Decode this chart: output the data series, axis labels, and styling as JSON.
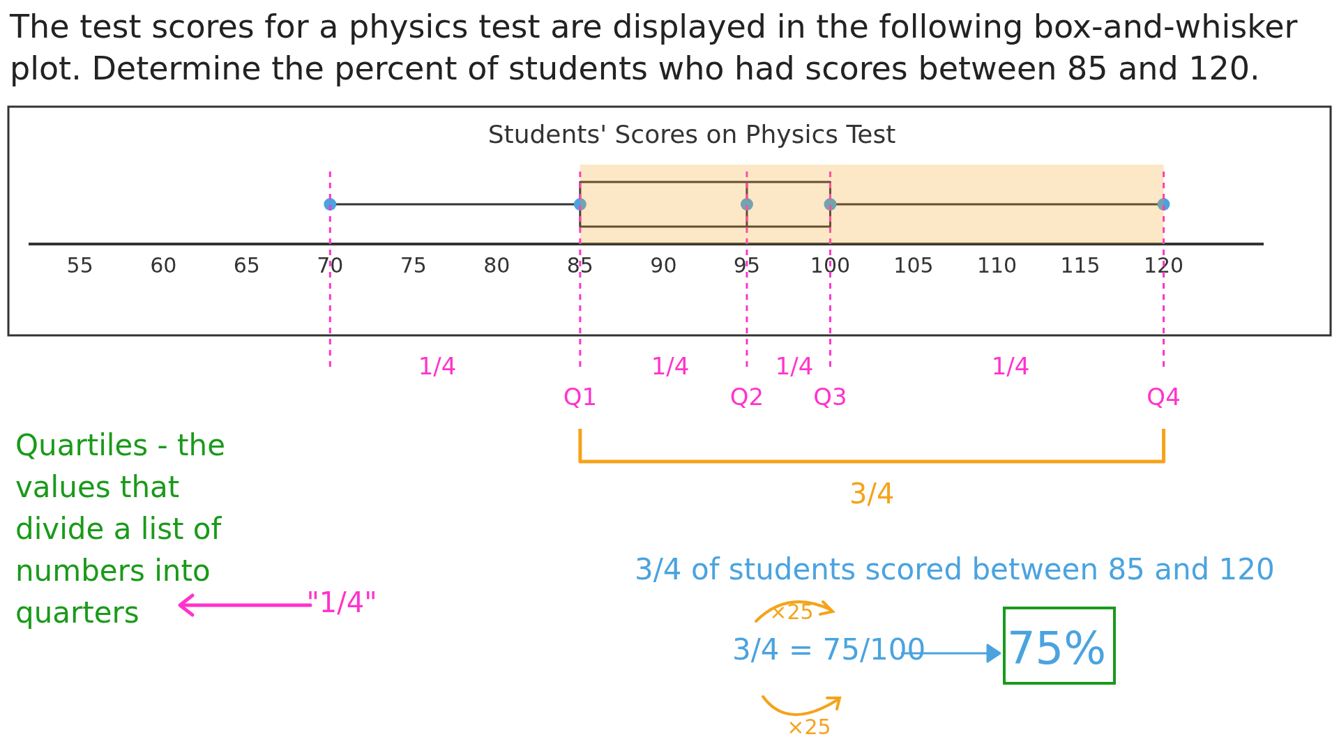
{
  "chart_data": {
    "type": "box",
    "orientation": "horizontal",
    "title": "Students' Scores on Physics Test",
    "categories": [
      null
    ],
    "marker": "circle",
    "color": "#333333",
    "series": [
      {
        "type": "scatter",
        "color": "#4aa3df",
        "x": [
          null,
          null,
          null,
          null,
          null
        ],
        "values": [
          70,
          85,
          95,
          100,
          120
        ]
      }
    ],
    "boxes": [
      {
        "low": 70,
        "q1": 85,
        "median": 95,
        "q3": 100,
        "high": 120
      }
    ],
    "xlim": [
      52,
      126
    ],
    "xticks": [
      55,
      60,
      65,
      70,
      75,
      80,
      85,
      90,
      95,
      100,
      105,
      110,
      115,
      120
    ],
    "ref_lines": [
      {
        "axis": "x",
        "value": 70,
        "label": null,
        "color": "#ff33cc",
        "line_style": "dashed"
      },
      {
        "axis": "x",
        "value": 85,
        "label": "Q1",
        "color": "#ff33cc",
        "line_style": "dashed"
      },
      {
        "axis": "x",
        "value": 95,
        "label": "Q2",
        "color": "#ff33cc",
        "line_style": "dashed"
      },
      {
        "axis": "x",
        "value": 100,
        "label": "Q3",
        "color": "#ff33cc",
        "line_style": "dashed"
      },
      {
        "axis": "x",
        "value": 120,
        "label": "Q4",
        "color": "#ff33cc",
        "line_style": "dashed"
      }
    ],
    "bands": [
      {
        "axis": "x",
        "from": 85,
        "to": 120,
        "label": "3/4",
        "color": "#f5a31a"
      }
    ],
    "annotations": [
      "The test scores for a physics test are displayed in the following box-and-whisker plot. Determine the percent of students who had scores between 85 and 120.",
      "1/4",
      "1/4",
      "1/4",
      "1/4",
      "Quartiles - the values that divide a list of numbers into quarters",
      "\"1/4\"",
      "3/4 of students scored between 85 and 120",
      "3/4 = 75/100",
      "×25",
      "×25",
      "75%"
    ]
  }
}
